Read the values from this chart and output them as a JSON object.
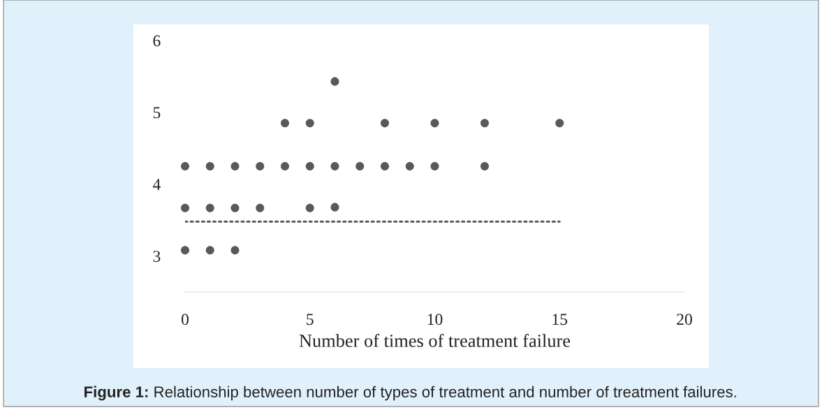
{
  "chart_data": {
    "type": "scatter",
    "xlabel": "Number of times of treatment failure",
    "annotations": [
      "Figure 1: Relationship between number of types of treatment and number of treatment failures."
    ],
    "xlim": [
      0,
      20
    ],
    "xticks": [
      0,
      5,
      10,
      15,
      20
    ],
    "ylim": [
      2.5,
      6
    ],
    "yticks": [
      3,
      4,
      5,
      6
    ],
    "grid": false,
    "series": [
      {
        "marker": "circle",
        "color": "#595959",
        "x": [
          0,
          0,
          0,
          1,
          1,
          1,
          2,
          2,
          2,
          3,
          3,
          4,
          4,
          5,
          5,
          5,
          6,
          6,
          6,
          7,
          8,
          8,
          9,
          10,
          10,
          12,
          12,
          15
        ],
        "values": [
          4.25,
          3.67,
          3.08,
          4.25,
          3.67,
          3.08,
          4.25,
          3.67,
          3.08,
          4.25,
          3.67,
          4.85,
          4.25,
          4.85,
          4.25,
          3.67,
          5.43,
          4.25,
          3.68,
          4.25,
          4.85,
          4.25,
          4.25,
          4.85,
          4.25,
          4.85,
          4.25,
          4.85
        ]
      },
      {
        "type": "line",
        "marker": "none",
        "color": "#595959",
        "line_style": "dotted",
        "x": [
          0,
          15
        ],
        "values": [
          3.48,
          3.48
        ]
      }
    ]
  }
}
